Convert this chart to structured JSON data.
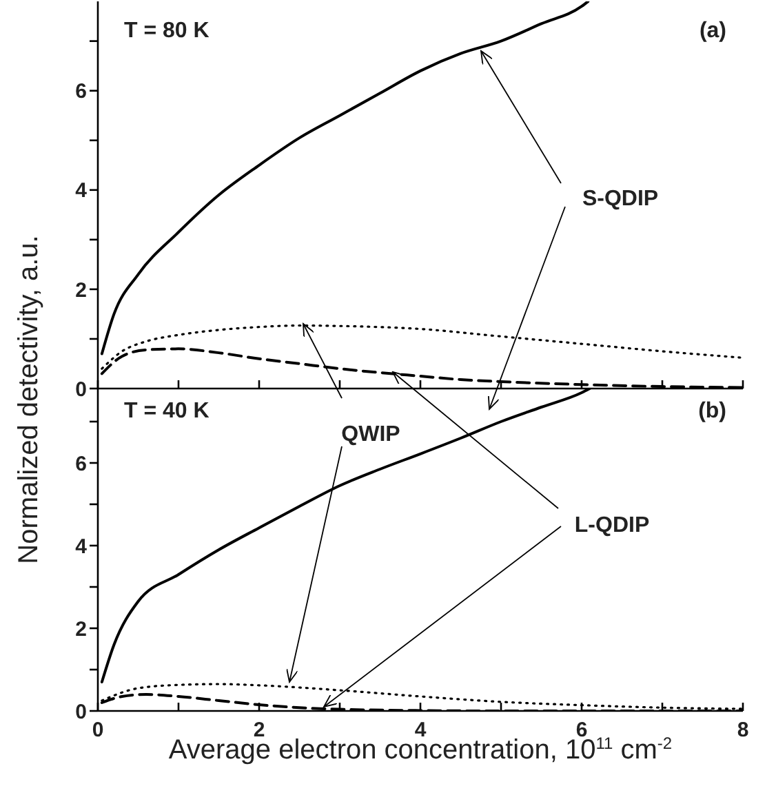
{
  "chart_data": [
    {
      "type": "line",
      "ylabel": "Normalized detectivity, a.u.",
      "annotations": [
        "T = 80 K",
        "(a)"
      ],
      "xlim": [
        0,
        8
      ],
      "xticks": [
        {
          "value": 0,
          "label": null
        },
        {
          "value": 1,
          "label": null
        },
        {
          "value": 2,
          "label": null
        },
        {
          "value": 3,
          "label": null
        },
        {
          "value": 4,
          "label": null
        },
        {
          "value": 5,
          "label": null
        },
        {
          "value": 6,
          "label": null
        },
        {
          "value": 7,
          "label": null
        },
        {
          "value": 8,
          "label": null
        }
      ],
      "ylim": [
        0,
        7.8
      ],
      "yticks": [
        0,
        {
          "value": 1,
          "label": null
        },
        2,
        {
          "value": 3,
          "label": null
        },
        4,
        {
          "value": 5,
          "label": null
        },
        6,
        {
          "value": 7,
          "label": null
        }
      ],
      "tick_labels": "y",
      "grid": false,
      "legend": false,
      "marker": "none",
      "series": [
        {
          "name": "S-QDIP",
          "color": "#000000",
          "line_style": "solid",
          "x": [
            0.05,
            0.2,
            0.5,
            1,
            1.5,
            2,
            2.5,
            3,
            3.5,
            4,
            4.5,
            5,
            5.5,
            6,
            6.08
          ],
          "values": [
            0.7,
            1.5,
            2.3,
            3.15,
            3.9,
            4.5,
            5.05,
            5.5,
            5.95,
            6.4,
            6.75,
            7.0,
            7.35,
            7.7,
            7.8
          ]
        },
        {
          "color": "#000000",
          "line_style": "dotted",
          "x": [
            0.05,
            0.3,
            0.6,
            1,
            1.5,
            2,
            2.5,
            3,
            4,
            5,
            6,
            7,
            8
          ],
          "values": [
            0.4,
            0.75,
            0.95,
            1.08,
            1.18,
            1.24,
            1.27,
            1.26,
            1.2,
            1.05,
            0.9,
            0.75,
            0.62
          ]
        },
        {
          "color": "#000000",
          "line_style": "dashed",
          "x": [
            0.05,
            0.3,
            0.6,
            1,
            1.5,
            2,
            2.5,
            3,
            3.5,
            4,
            4.5,
            5,
            6,
            7,
            8
          ],
          "values": [
            0.3,
            0.65,
            0.78,
            0.8,
            0.72,
            0.6,
            0.5,
            0.4,
            0.32,
            0.25,
            0.18,
            0.14,
            0.08,
            0.04,
            0.02
          ]
        }
      ]
    },
    {
      "type": "line",
      "xlabel": "Average electron concentration, 10$^{11}$ cm$^{-2}$",
      "annotations": [
        "T = 40 K",
        "(b)"
      ],
      "xlim": [
        0,
        8
      ],
      "xticks": [
        0,
        {
          "value": 1,
          "label": null
        },
        2,
        {
          "value": 3,
          "label": null
        },
        4,
        {
          "value": 5,
          "label": null
        },
        6,
        {
          "value": 7,
          "label": null
        },
        8
      ],
      "ylim": [
        0,
        7.8
      ],
      "yticks": [
        0,
        {
          "value": 1,
          "label": null
        },
        2,
        {
          "value": 3,
          "label": null
        },
        4,
        {
          "value": 5,
          "label": null
        },
        6,
        {
          "value": 7,
          "label": null
        }
      ],
      "grid": false,
      "legend": false,
      "marker": "none",
      "series": [
        {
          "color": "#000000",
          "line_style": "solid",
          "x": [
            0.05,
            0.2,
            0.5,
            1,
            1.5,
            2,
            2.5,
            3,
            3.5,
            4,
            4.5,
            5,
            5.5,
            6,
            6.1
          ],
          "values": [
            0.7,
            1.6,
            2.65,
            3.3,
            3.9,
            4.43,
            4.95,
            5.45,
            5.85,
            6.22,
            6.6,
            7.0,
            7.35,
            7.7,
            7.8
          ]
        },
        {
          "name": "QWIP",
          "color": "#000000",
          "line_style": "dotted",
          "x": [
            0.05,
            0.5,
            1,
            1.5,
            2,
            3,
            4,
            5,
            6,
            7,
            8
          ],
          "values": [
            0.25,
            0.55,
            0.63,
            0.65,
            0.62,
            0.5,
            0.35,
            0.22,
            0.14,
            0.08,
            0.05
          ]
        },
        {
          "name": "L-QDIP",
          "color": "#000000",
          "line_style": "dashed",
          "x": [
            0.05,
            0.3,
            0.6,
            1,
            1.5,
            2,
            2.5,
            3,
            4,
            5,
            8
          ],
          "values": [
            0.2,
            0.35,
            0.4,
            0.35,
            0.25,
            0.15,
            0.08,
            0.04,
            0.01,
            0,
            0
          ]
        }
      ]
    }
  ]
}
